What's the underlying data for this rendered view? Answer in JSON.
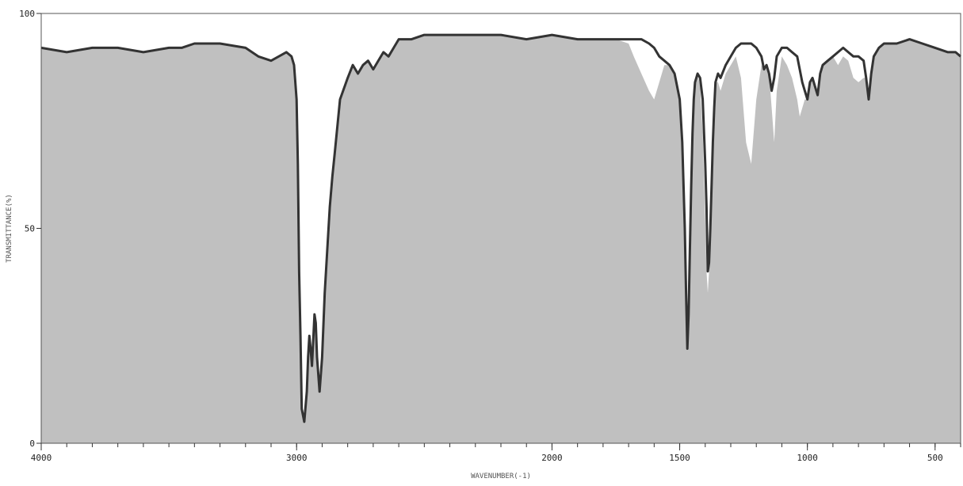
{
  "chart_data": {
    "type": "area",
    "title": "",
    "xlabel": "WAVENUMBER(-1)",
    "ylabel": "TRANSMITTANCE(%)",
    "xlim": [
      4000,
      400
    ],
    "ylim": [
      0,
      100
    ],
    "x_reversed": true,
    "grid": false,
    "legend": "none",
    "x_ticks": [
      {
        "value": 4000,
        "label": "4000"
      },
      {
        "value": 3000,
        "label": "3000"
      },
      {
        "value": 2000,
        "label": "2000"
      },
      {
        "value": 1500,
        "label": "1500"
      },
      {
        "value": 1000,
        "label": "1000"
      },
      {
        "value": 500,
        "label": "500"
      }
    ],
    "y_ticks": [
      {
        "value": 100,
        "label": "100"
      },
      {
        "value": 50,
        "label": "50"
      },
      {
        "value": 0,
        "label": "0"
      }
    ],
    "colors": {
      "background": "#c0c0c0",
      "absorption_fill": "#7a7a7a",
      "spectrum_line": "#333333",
      "reference_line": "#ffffff",
      "frame": "#555555"
    },
    "series": [
      {
        "x": [
          4000,
          3900,
          3800,
          3700,
          3600,
          3500,
          3450,
          3400,
          3300,
          3200,
          3150,
          3100,
          3070,
          3040,
          3020,
          3010,
          3000,
          2995,
          2990,
          2985,
          2980,
          2970,
          2960,
          2955,
          2950,
          2945,
          2940,
          2935,
          2930,
          2925,
          2920,
          2910,
          2900,
          2890,
          2880,
          2870,
          2860,
          2850,
          2830,
          2800,
          2780,
          2760,
          2740,
          2720,
          2700,
          2680,
          2660,
          2640,
          2620,
          2600,
          2550,
          2500,
          2400,
          2300,
          2200,
          2100,
          2000,
          1900,
          1800,
          1750,
          1700,
          1680,
          1650,
          1620,
          1600,
          1580,
          1560,
          1540,
          1520,
          1500,
          1490,
          1480,
          1475,
          1470,
          1465,
          1460,
          1455,
          1450,
          1445,
          1440,
          1430,
          1420,
          1410,
          1400,
          1395,
          1390,
          1385,
          1380,
          1375,
          1370,
          1365,
          1360,
          1350,
          1340,
          1320,
          1300,
          1280,
          1260,
          1240,
          1220,
          1200,
          1180,
          1170,
          1160,
          1150,
          1140,
          1130,
          1120,
          1100,
          1080,
          1060,
          1040,
          1030,
          1020,
          1010,
          1000,
          990,
          980,
          970,
          960,
          950,
          940,
          920,
          900,
          880,
          860,
          840,
          820,
          800,
          780,
          770,
          760,
          750,
          740,
          720,
          700,
          650,
          600,
          550,
          500,
          450,
          420,
          400
        ],
        "y": [
          92,
          91,
          92,
          92,
          91,
          92,
          92,
          93,
          93,
          92,
          90,
          89,
          90,
          91,
          90,
          88,
          80,
          65,
          40,
          25,
          8,
          5,
          12,
          20,
          25,
          22,
          18,
          24,
          30,
          28,
          20,
          12,
          20,
          35,
          45,
          55,
          62,
          68,
          80,
          85,
          88,
          86,
          88,
          89,
          87,
          89,
          91,
          90,
          92,
          94,
          94,
          95,
          95,
          95,
          95,
          94,
          95,
          94,
          94,
          94,
          94,
          94,
          94,
          93,
          92,
          90,
          89,
          88,
          86,
          80,
          70,
          50,
          35,
          22,
          30,
          45,
          60,
          72,
          80,
          84,
          86,
          85,
          80,
          65,
          55,
          40,
          42,
          50,
          60,
          70,
          78,
          84,
          86,
          85,
          88,
          90,
          92,
          93,
          93,
          93,
          92,
          90,
          87,
          88,
          86,
          82,
          85,
          90,
          92,
          92,
          91,
          90,
          87,
          84,
          82,
          80,
          84,
          85,
          83,
          81,
          86,
          88,
          89,
          90,
          91,
          92,
          91,
          90,
          90,
          89,
          85,
          80,
          86,
          90,
          92,
          93,
          93,
          94,
          93,
          92,
          91,
          91,
          90
        ],
        "ref_y": [
          92,
          91,
          92,
          92,
          91,
          92,
          92,
          93,
          93,
          92,
          90,
          89,
          90,
          91,
          90,
          88,
          80,
          65,
          40,
          25,
          8,
          5,
          12,
          20,
          25,
          22,
          18,
          24,
          30,
          28,
          20,
          12,
          20,
          35,
          45,
          55,
          62,
          68,
          80,
          85,
          88,
          86,
          88,
          89,
          87,
          89,
          91,
          90,
          92,
          94,
          94,
          95,
          95,
          95,
          95,
          94,
          95,
          94,
          94,
          94,
          93,
          90,
          86,
          82,
          80,
          84,
          88,
          88,
          86,
          80,
          70,
          50,
          35,
          24,
          32,
          45,
          60,
          72,
          80,
          84,
          86,
          83,
          72,
          52,
          40,
          35,
          40,
          50,
          60,
          72,
          80,
          84,
          84,
          82,
          86,
          88,
          90,
          85,
          70,
          65,
          80,
          88,
          87,
          88,
          86,
          78,
          70,
          82,
          90,
          88,
          85,
          80,
          76,
          78,
          80,
          80,
          84,
          85,
          83,
          81,
          86,
          88,
          89,
          90,
          88,
          90,
          89,
          85,
          84,
          85,
          85,
          82,
          86,
          90,
          92,
          93,
          93,
          94,
          93,
          92,
          91,
          91,
          90
        ]
      }
    ]
  }
}
